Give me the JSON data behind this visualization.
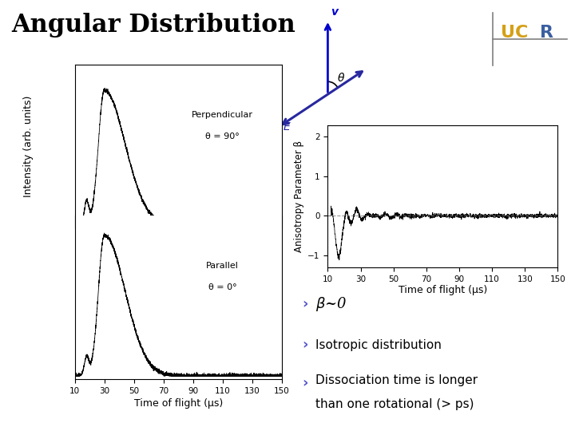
{
  "title": "Angular Distribution",
  "title_fontsize": 22,
  "title_fontweight": "bold",
  "bg_color": "#ffffff",
  "left_plot": {
    "xlabel": "Time of flight (μs)",
    "ylabel": "Intensity (arb. units)",
    "xticks": [
      10,
      30,
      50,
      70,
      90,
      110,
      130,
      150
    ],
    "xlim": [
      10,
      150
    ],
    "label_top": "Perpendicular",
    "label_top2": "θ = 90°",
    "label_bot": "Parallel",
    "label_bot2": "θ = 0°"
  },
  "right_plot": {
    "xlabel": "Time of flight (μs)",
    "ylabel": "Anisotropy Parameter β",
    "xticks": [
      10,
      30,
      50,
      70,
      90,
      110,
      130,
      150
    ],
    "yticks": [
      -1,
      0,
      1,
      2
    ],
    "xlim": [
      10,
      150
    ],
    "ylim": [
      -1.3,
      2.3
    ]
  },
  "bullet_color": "#5555cc",
  "bullet_items": [
    "β~0",
    "Isotropic distribution",
    "Dissociation time is longer\nthan one rotational (> ps)"
  ],
  "ucr_U_color": "#d4a017",
  "ucr_C_color": "#d4a017",
  "ucr_R_color": "#3a5fa0",
  "arrow_v_color": "#0000cc",
  "arrow_E_color": "#2828a0",
  "theta_color": "#000000"
}
